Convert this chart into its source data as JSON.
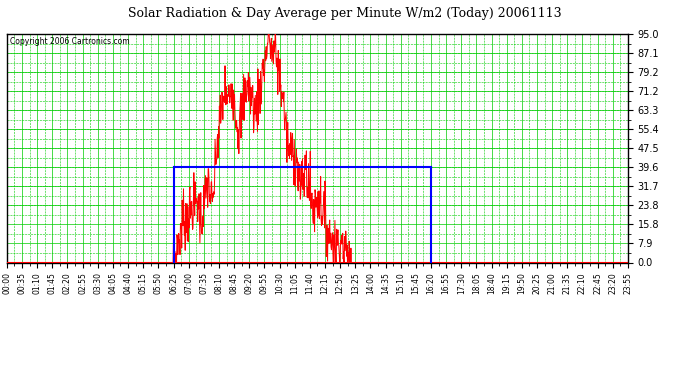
{
  "title": "Solar Radiation & Day Average per Minute W/m2 (Today) 20061113",
  "copyright": "Copyright 2006 Cartronics.com",
  "bg_color": "#ffffff",
  "plot_bg_color": "#ffffff",
  "grid_color": "#00cc00",
  "ymin": 0.0,
  "ymax": 95.0,
  "yticks": [
    0.0,
    7.9,
    15.8,
    23.8,
    31.7,
    39.6,
    47.5,
    55.4,
    63.3,
    71.2,
    79.2,
    87.1,
    95.0
  ],
  "total_minutes": 1435,
  "solar_color": "#ff0000",
  "avg_color": "#0000ff",
  "avg_box": {
    "x_start_min": 385,
    "x_end_min": 980,
    "y_value": 39.6
  },
  "xtick_minutes": [
    0,
    35,
    70,
    105,
    140,
    175,
    210,
    245,
    280,
    315,
    350,
    385,
    420,
    455,
    490,
    525,
    560,
    595,
    630,
    665,
    700,
    735,
    770,
    805,
    840,
    875,
    910,
    945,
    980,
    1015,
    1050,
    1085,
    1120,
    1155,
    1190,
    1225,
    1260,
    1295,
    1330,
    1365,
    1400,
    1435
  ],
  "xtick_labels": [
    "00:00",
    "00:35",
    "01:10",
    "01:45",
    "02:20",
    "02:55",
    "03:30",
    "04:05",
    "04:40",
    "05:15",
    "05:50",
    "06:25",
    "07:00",
    "07:35",
    "08:10",
    "08:45",
    "09:20",
    "09:55",
    "10:30",
    "11:05",
    "11:40",
    "12:15",
    "12:50",
    "13:25",
    "14:00",
    "14:35",
    "15:10",
    "15:45",
    "16:20",
    "16:55",
    "17:30",
    "18:05",
    "18:40",
    "19:15",
    "19:50",
    "20:25",
    "21:00",
    "21:35",
    "22:10",
    "22:45",
    "23:20",
    "23:55"
  ],
  "solar_key_points": [
    [
      0,
      0
    ],
    [
      384,
      0
    ],
    [
      385,
      1
    ],
    [
      390,
      3
    ],
    [
      395,
      7
    ],
    [
      400,
      12
    ],
    [
      405,
      16
    ],
    [
      410,
      20
    ],
    [
      415,
      17
    ],
    [
      420,
      22
    ],
    [
      425,
      20
    ],
    [
      430,
      25
    ],
    [
      435,
      22
    ],
    [
      440,
      27
    ],
    [
      445,
      20
    ],
    [
      450,
      18
    ],
    [
      455,
      23
    ],
    [
      460,
      28
    ],
    [
      465,
      35
    ],
    [
      470,
      28
    ],
    [
      475,
      22
    ],
    [
      480,
      35
    ],
    [
      485,
      48
    ],
    [
      490,
      55
    ],
    [
      495,
      62
    ],
    [
      500,
      68
    ],
    [
      505,
      72
    ],
    [
      510,
      65
    ],
    [
      515,
      70
    ],
    [
      520,
      75
    ],
    [
      525,
      68
    ],
    [
      530,
      62
    ],
    [
      535,
      55
    ],
    [
      540,
      60
    ],
    [
      545,
      65
    ],
    [
      550,
      70
    ],
    [
      555,
      75
    ],
    [
      560,
      72
    ],
    [
      565,
      68
    ],
    [
      570,
      65
    ],
    [
      575,
      62
    ],
    [
      580,
      68
    ],
    [
      585,
      72
    ],
    [
      590,
      78
    ],
    [
      595,
      82
    ],
    [
      600,
      88
    ],
    [
      605,
      95
    ],
    [
      610,
      90
    ],
    [
      615,
      85
    ],
    [
      620,
      88
    ],
    [
      625,
      82
    ],
    [
      630,
      78
    ],
    [
      635,
      72
    ],
    [
      640,
      65
    ],
    [
      645,
      55
    ],
    [
      650,
      48
    ],
    [
      655,
      45
    ],
    [
      660,
      48
    ],
    [
      665,
      45
    ],
    [
      670,
      42
    ],
    [
      675,
      35
    ],
    [
      680,
      30
    ],
    [
      685,
      35
    ],
    [
      690,
      40
    ],
    [
      695,
      35
    ],
    [
      700,
      30
    ],
    [
      705,
      25
    ],
    [
      710,
      22
    ],
    [
      715,
      25
    ],
    [
      720,
      28
    ],
    [
      725,
      25
    ],
    [
      730,
      22
    ],
    [
      735,
      18
    ],
    [
      740,
      15
    ],
    [
      745,
      12
    ],
    [
      750,
      10
    ],
    [
      755,
      8
    ],
    [
      760,
      6
    ],
    [
      765,
      8
    ],
    [
      770,
      10
    ],
    [
      775,
      8
    ],
    [
      780,
      5
    ],
    [
      785,
      3
    ],
    [
      790,
      1
    ],
    [
      795,
      0
    ],
    [
      1435,
      0
    ]
  ]
}
